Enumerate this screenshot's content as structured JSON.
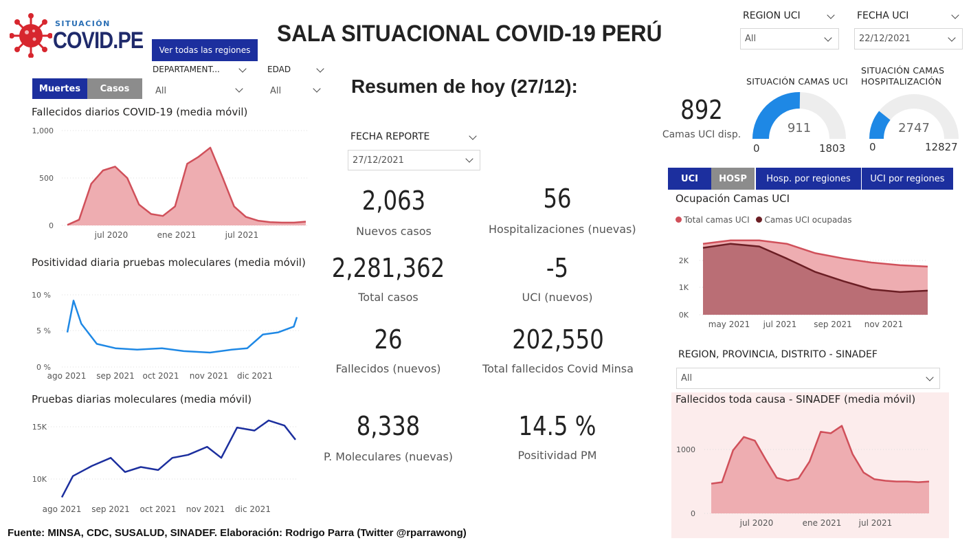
{
  "logo": {
    "top": "SITUACIÓN",
    "main": "COVID.PE"
  },
  "header": {
    "title": "SALA SITUACIONAL COVID-19 PERÚ",
    "all_regions_button": "Ver todas las regiones",
    "summary": "Resumen de hoy (27/12):"
  },
  "left_toggle": {
    "muertes": "Muertes",
    "casos": "Casos"
  },
  "filters": {
    "departamento": {
      "label": "DEPARTAMENT...",
      "value": "All"
    },
    "edad": {
      "label": "EDAD",
      "value": "All"
    },
    "region_uci": {
      "label": "REGION UCI",
      "value": "All"
    },
    "fecha_uci": {
      "label": "FECHA UCI",
      "value": "22/12/2021"
    },
    "fecha_reporte": {
      "label": "FECHA REPORTE",
      "value": "27/12/2021"
    },
    "sinadef": {
      "label": "REGION, PROVINCIA, DISTRITO - SINADEF",
      "value": "All"
    }
  },
  "kpis": [
    {
      "value": "2,063",
      "label": "Nuevos casos"
    },
    {
      "value": "56",
      "label": "Hospitalizaciones (nuevas)"
    },
    {
      "value": "2,281,362",
      "label": "Total casos"
    },
    {
      "value": "-5",
      "label": "UCI (nuevos)"
    },
    {
      "value": "26",
      "label": "Fallecidos  (nuevos)"
    },
    {
      "value": "202,550",
      "label": "Total fallecidos Covid Minsa"
    },
    {
      "value": "8,338",
      "label": "P. Moleculares (nuevas)"
    },
    {
      "value": "14.5 %",
      "label": "Positividad PM"
    }
  ],
  "camas": {
    "uci_disp_value": "892",
    "uci_disp_label": "Camas UCI disp.",
    "gauge_uci": {
      "title": "SITUACIÓN CAMAS UCI",
      "value": 911,
      "min": 0,
      "max": 1803,
      "value_label": "911",
      "min_label": "0",
      "max_label": "1803"
    },
    "gauge_hosp": {
      "title_line1": "SITUACIÓN CAMAS",
      "title_line2": "HOSPITALIZACIÓN",
      "value": 2747,
      "min": 0,
      "max": 12827,
      "value_label": "2747",
      "min_label": "0",
      "max_label": "12827"
    }
  },
  "right_tabs": {
    "uci": "UCI",
    "hosp": "HOSP",
    "hosp_regiones": "Hosp. por regiones",
    "uci_regiones": "UCI por regiones"
  },
  "colors": {
    "navy": "#1c2f9e",
    "red": "#d0505a",
    "red_fill": "#eeadb1",
    "dark_red": "#6b1e24",
    "blue": "#1e88e5",
    "gauge_blue": "#1e88e5",
    "gauge_gray": "#ededed"
  },
  "chart_data": [
    {
      "id": "fallecidos",
      "type": "area",
      "title": "Fallecidos diarios COVID-19 (media móvil)",
      "y_ticks": [
        "1,000",
        "500",
        "0"
      ],
      "x_ticks": [
        "jul 2020",
        "ene 2021",
        "jul 2021"
      ],
      "ylim": [
        0,
        1000
      ],
      "x": [
        "2020-04",
        "2020-05",
        "2020-06",
        "2020-07",
        "2020-08",
        "2020-09",
        "2020-10",
        "2020-11",
        "2020-12",
        "2021-01",
        "2021-02",
        "2021-03",
        "2021-04",
        "2021-05",
        "2021-06",
        "2021-07",
        "2021-08",
        "2021-09",
        "2021-10",
        "2021-11",
        "2021-12"
      ],
      "values": [
        5,
        60,
        440,
        580,
        620,
        500,
        220,
        120,
        100,
        200,
        650,
        720,
        820,
        520,
        200,
        90,
        50,
        35,
        30,
        30,
        40
      ]
    },
    {
      "id": "positividad",
      "type": "line",
      "title": "Positividad diaria pruebas moleculares (media móvil)",
      "y_ticks": [
        "10 %",
        "5 %",
        "0 %"
      ],
      "x_ticks": [
        "ago 2021",
        "sep 2021",
        "oct 2021",
        "nov 2021",
        "dic 2021"
      ],
      "ylim": [
        0,
        10
      ],
      "x": [
        "2021-08-01",
        "2021-08-05",
        "2021-08-10",
        "2021-08-20",
        "2021-09-01",
        "2021-09-15",
        "2021-10-01",
        "2021-10-15",
        "2021-11-01",
        "2021-11-15",
        "2021-11-25",
        "2021-12-05",
        "2021-12-15",
        "2021-12-25",
        "2021-12-27"
      ],
      "values": [
        4.8,
        9.2,
        6.0,
        3.2,
        2.6,
        2.4,
        2.6,
        2.2,
        2.0,
        2.4,
        2.6,
        4.5,
        4.8,
        5.6,
        6.9
      ]
    },
    {
      "id": "pruebas",
      "type": "line",
      "title": "Pruebas diarias moleculares (media móvil)",
      "y_ticks": [
        "15K",
        "10K"
      ],
      "x_ticks": [
        "ago 2021",
        "sep 2021",
        "oct 2021",
        "nov 2021",
        "dic 2021"
      ],
      "ylim": [
        8000,
        16500
      ],
      "x": [
        "2021-08-01",
        "2021-08-08",
        "2021-08-20",
        "2021-09-01",
        "2021-09-10",
        "2021-09-20",
        "2021-10-01",
        "2021-10-10",
        "2021-10-20",
        "2021-11-01",
        "2021-11-10",
        "2021-11-20",
        "2021-12-01",
        "2021-12-10",
        "2021-12-20",
        "2021-12-27"
      ],
      "values": [
        8300,
        10400,
        11400,
        12200,
        10800,
        11300,
        11000,
        12200,
        12500,
        13300,
        12200,
        15200,
        14900,
        15900,
        15400,
        14000
      ]
    },
    {
      "id": "ocupacion_uci",
      "type": "area",
      "title": "Ocupación Camas UCI",
      "legend": [
        "Total camas UCI",
        "Camas UCI ocupadas"
      ],
      "y_ticks": [
        "2K",
        "1K",
        "0K"
      ],
      "x_ticks": [
        "may 2021",
        "jul 2021",
        "sep 2021",
        "nov 2021"
      ],
      "ylim": [
        0,
        2900
      ],
      "x": [
        "2021-04",
        "2021-05",
        "2021-06",
        "2021-07",
        "2021-08",
        "2021-09",
        "2021-10",
        "2021-11",
        "2021-12"
      ],
      "series": [
        {
          "name": "Total camas UCI",
          "values": [
            2650,
            2780,
            2780,
            2650,
            2300,
            2100,
            1950,
            1850,
            1800
          ]
        },
        {
          "name": "Camas UCI ocupadas",
          "values": [
            2500,
            2650,
            2550,
            2100,
            1600,
            1250,
            950,
            850,
            900
          ]
        }
      ]
    },
    {
      "id": "sinadef",
      "type": "area",
      "title": "Fallecidos toda causa - SINADEF (media móvil)",
      "y_ticks": [
        "1000",
        "0"
      ],
      "x_ticks": [
        "jul 2020",
        "ene 2021",
        "jul 2021"
      ],
      "ylim": [
        0,
        1250
      ],
      "x": [
        "2020-04",
        "2020-05",
        "2020-06",
        "2020-07",
        "2020-08",
        "2020-09",
        "2020-10",
        "2020-11",
        "2020-12",
        "2021-01",
        "2021-02",
        "2021-03",
        "2021-04",
        "2021-05",
        "2021-06",
        "2021-07",
        "2021-08",
        "2021-09",
        "2021-10",
        "2021-11",
        "2021-12"
      ],
      "values": [
        400,
        420,
        850,
        1030,
        980,
        720,
        480,
        440,
        470,
        700,
        1100,
        1080,
        1180,
        800,
        550,
        460,
        440,
        430,
        430,
        420,
        430
      ]
    }
  ],
  "footer": "Fuente: MINSA, CDC, SUSALUD, SINADEF. Elaboración: Rodrigo Parra (Twitter @rparrawong)"
}
